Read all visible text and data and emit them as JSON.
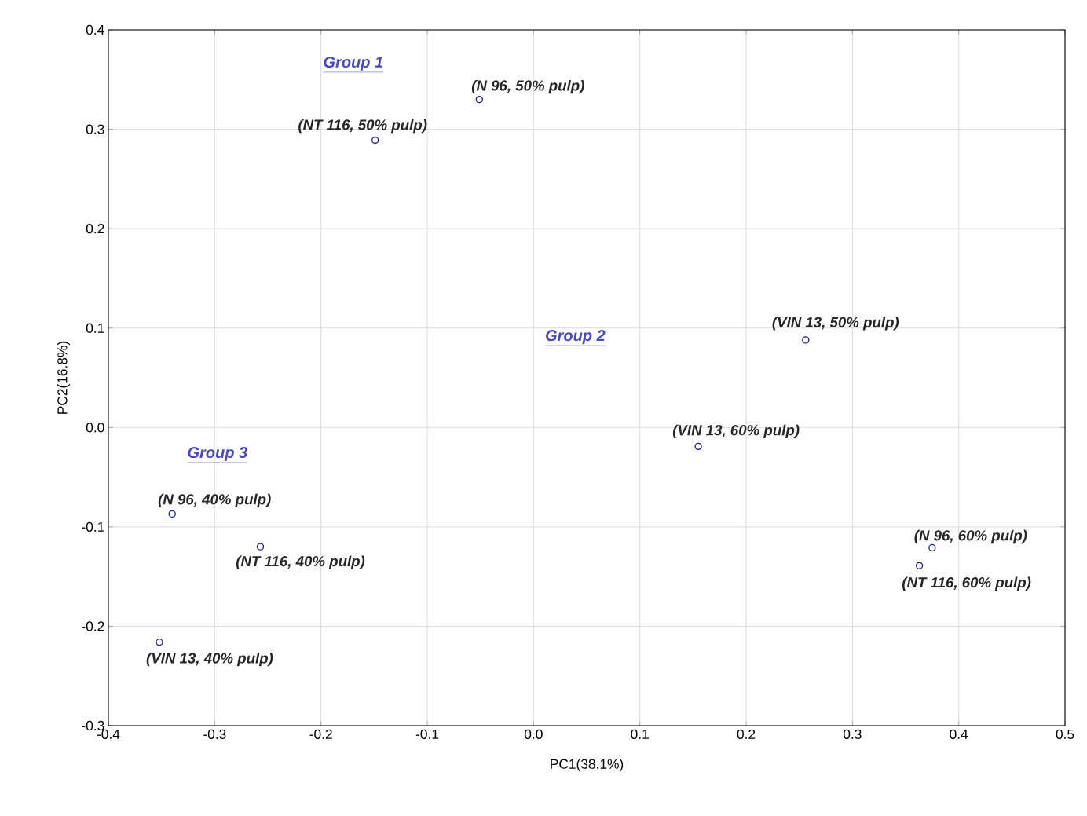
{
  "chart_data": {
    "type": "scatter",
    "xlabel": "PC1(38.1%)",
    "ylabel": "PC2(16.8%)",
    "x": [
      -0.051,
      -0.149,
      0.256,
      0.155,
      0.375,
      0.363,
      -0.34,
      -0.257,
      -0.352
    ],
    "values": [
      0.33,
      0.289,
      0.088,
      -0.019,
      -0.121,
      -0.139,
      -0.087,
      -0.12,
      -0.216
    ],
    "color": "#1a1a8c",
    "marker": "circle",
    "grid": true,
    "xlim": [
      -0.4,
      0.5
    ],
    "ylim": [
      -0.3,
      0.4
    ],
    "xticks": [
      -0.4,
      -0.3,
      -0.2,
      -0.1,
      {
        "value": 0,
        "label": "0.0"
      },
      0.1,
      0.2,
      0.3,
      0.4,
      0.5
    ],
    "yticks": [
      -0.3,
      -0.2,
      -0.1,
      {
        "value": 0,
        "label": "0.0"
      },
      0.1,
      0.2,
      0.3,
      0.4
    ],
    "annotations": [
      "Group 1",
      "Group 2",
      "Group 3",
      {
        "text": "(N 96, 50% pulp)",
        "x": -0.051,
        "y": 0.33
      },
      {
        "text": "(NT 116, 50% pulp)",
        "x": -0.149,
        "y": 0.289
      },
      {
        "text": "(VIN 13, 50% pulp)",
        "x": 0.256,
        "y": 0.088
      },
      {
        "text": "(VIN 13, 60% pulp)",
        "x": 0.155,
        "y": -0.019
      },
      {
        "text": "(N 96, 60% pulp)",
        "x": 0.375,
        "y": -0.121
      },
      {
        "text": "(NT 116, 60% pulp)",
        "x": 0.363,
        "y": -0.139
      },
      {
        "text": "(N 96, 40% pulp)",
        "x": -0.34,
        "y": -0.087
      },
      {
        "text": "(NT 116, 40% pulp)",
        "x": -0.257,
        "y": -0.12
      },
      {
        "text": "(VIN 13, 40% pulp)",
        "x": -0.352,
        "y": -0.216
      }
    ]
  }
}
